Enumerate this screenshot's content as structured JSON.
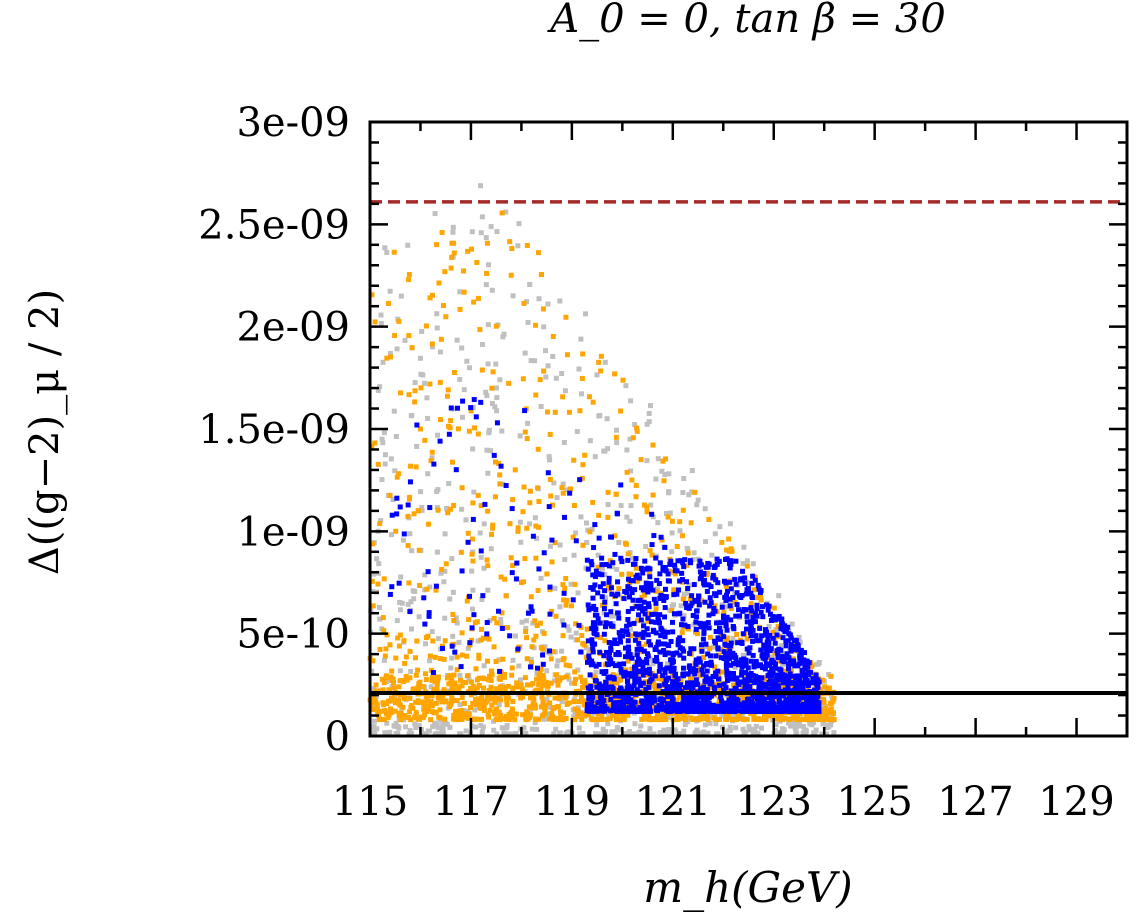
{
  "chart_data": {
    "type": "scatter",
    "title": "A_0 = 0, tan β = 30",
    "xlabel": "m_h(GeV)",
    "ylabel": "Δ((g−2)_μ / 2)",
    "xlim": [
      115,
      130
    ],
    "ylim": [
      0,
      3e-09
    ],
    "x_ticks": [
      115,
      117,
      119,
      121,
      123,
      125,
      127,
      129
    ],
    "y_ticks": [
      0,
      5e-10,
      1e-09,
      1.5e-09,
      2e-09,
      2.5e-09,
      3e-09
    ],
    "x_tick_labels": [
      "115",
      "117",
      "119",
      "121",
      "123",
      "125",
      "127",
      "129"
    ],
    "y_tick_labels": [
      "0",
      "5e-10",
      "1e-09",
      "1.5e-09",
      "2e-09",
      "2.5e-09",
      "3e-09"
    ],
    "grid": false,
    "reference_lines": [
      {
        "y": 2.61e-09,
        "style": "dashed",
        "color": "#a52a2a"
      },
      {
        "y": 2.1e-10,
        "style": "solid",
        "color": "#000000"
      }
    ],
    "series_colors": [
      "#c0c0c0",
      "#ffa500",
      "#0000ff"
    ],
    "point_clouds": [
      {
        "color": "#c0c0c0",
        "x_range": [
          115,
          124.2
        ],
        "y_peak": 2.78e-09,
        "y_edge_at_124": 1e-10
      },
      {
        "color": "#ffa500",
        "x_range": [
          115,
          124.2
        ],
        "y_peak": 2.47e-09,
        "y_edge_at_124": 1e-10
      },
      {
        "color": "#0000ff",
        "x_range": [
          115.4,
          123.9
        ],
        "y_peak": 1.3e-09,
        "y_edge_at_124": 1.2e-10
      }
    ]
  }
}
